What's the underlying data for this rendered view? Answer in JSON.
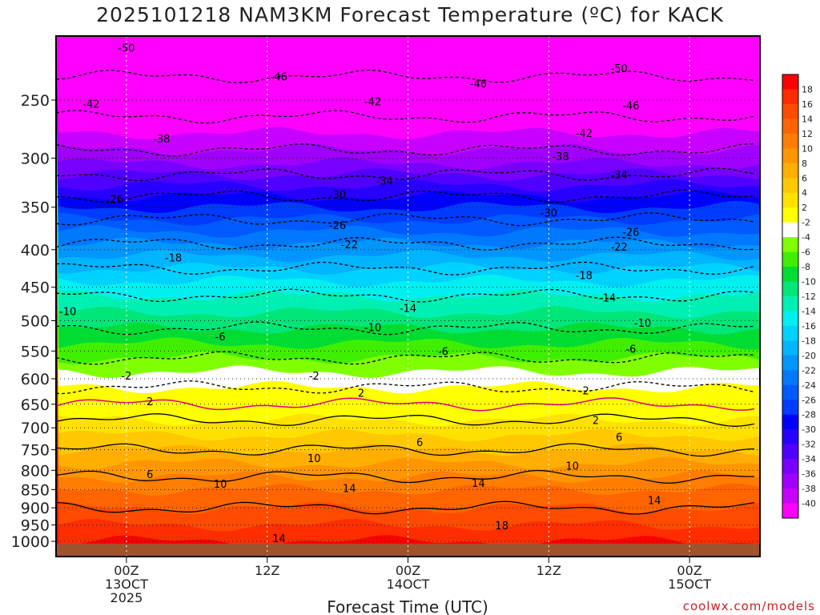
{
  "chart_data": {
    "type": "heatmap",
    "title": "2025101218 NAM3KM Forecast Temperature (ºC) for KACK",
    "xlabel": "Forecast Time (UTC)",
    "ylabel": "",
    "x_ticks": [
      {
        "hour": 6,
        "lines": [
          "00Z",
          "13OCT",
          "2025"
        ]
      },
      {
        "hour": 18,
        "lines": [
          "12Z"
        ]
      },
      {
        "hour": 30,
        "lines": [
          "00Z",
          "14OCT"
        ]
      },
      {
        "hour": 42,
        "lines": [
          "12Z"
        ]
      },
      {
        "hour": 54,
        "lines": [
          "00Z",
          "15OCT"
        ]
      }
    ],
    "xlim": [
      0,
      60
    ],
    "y_ticks": [
      250,
      300,
      350,
      400,
      450,
      500,
      550,
      600,
      650,
      700,
      750,
      800,
      850,
      900,
      950,
      1000
    ],
    "ylim_hpa": [
      1000,
      200
    ],
    "temperature_profile": [
      {
        "p": 1000,
        "t": 15
      },
      {
        "p": 950,
        "t": 16
      },
      {
        "p": 900,
        "t": 14
      },
      {
        "p": 850,
        "t": 12
      },
      {
        "p": 800,
        "t": 9
      },
      {
        "p": 750,
        "t": 6
      },
      {
        "p": 700,
        "t": 3
      },
      {
        "p": 650,
        "t": 0
      },
      {
        "p": 600,
        "t": -3
      },
      {
        "p": 550,
        "t": -7
      },
      {
        "p": 500,
        "t": -11
      },
      {
        "p": 450,
        "t": -15
      },
      {
        "p": 400,
        "t": -21
      },
      {
        "p": 350,
        "t": -28
      },
      {
        "p": 300,
        "t": -37
      },
      {
        "p": 250,
        "t": -44
      },
      {
        "p": 200,
        "t": -50
      }
    ],
    "contour_levels": [
      -50,
      -46,
      -42,
      -38,
      -34,
      -30,
      -26,
      -22,
      -18,
      -14,
      -10,
      -6,
      -2,
      2,
      6,
      10,
      14,
      18
    ],
    "contour_labels": [
      {
        "text": "-50",
        "hour": 6,
        "p": 212
      },
      {
        "text": "-46",
        "hour": 19,
        "p": 232
      },
      {
        "text": "-46",
        "hour": 36,
        "p": 237
      },
      {
        "text": "-50",
        "hour": 48,
        "p": 226
      },
      {
        "text": "-42",
        "hour": 3,
        "p": 253
      },
      {
        "text": "-42",
        "hour": 27,
        "p": 251
      },
      {
        "text": "-46",
        "hour": 49,
        "p": 254
      },
      {
        "text": "-38",
        "hour": 9,
        "p": 282
      },
      {
        "text": "-42",
        "hour": 45,
        "p": 277
      },
      {
        "text": "-38",
        "hour": 43,
        "p": 298
      },
      {
        "text": "-34",
        "hour": 28,
        "p": 322
      },
      {
        "text": "-34",
        "hour": 48,
        "p": 316
      },
      {
        "text": "-26",
        "hour": 5,
        "p": 341
      },
      {
        "text": "-30",
        "hour": 24,
        "p": 336
      },
      {
        "text": "-30",
        "hour": 42,
        "p": 356
      },
      {
        "text": "-26",
        "hour": 24,
        "p": 370
      },
      {
        "text": "-26",
        "hour": 49,
        "p": 378
      },
      {
        "text": "-22",
        "hour": 25,
        "p": 393
      },
      {
        "text": "-22",
        "hour": 48,
        "p": 396
      },
      {
        "text": "-18",
        "hour": 10,
        "p": 410
      },
      {
        "text": "-18",
        "hour": 45,
        "p": 433
      },
      {
        "text": "-14",
        "hour": 30,
        "p": 480
      },
      {
        "text": "-14",
        "hour": 47,
        "p": 465
      },
      {
        "text": "-10",
        "hour": 1,
        "p": 485
      },
      {
        "text": "-10",
        "hour": 27,
        "p": 510
      },
      {
        "text": "-10",
        "hour": 50,
        "p": 503
      },
      {
        "text": "-6",
        "hour": 14,
        "p": 525
      },
      {
        "text": "-6",
        "hour": 33,
        "p": 550
      },
      {
        "text": "-6",
        "hour": 49,
        "p": 546
      },
      {
        "text": "-2",
        "hour": 6,
        "p": 594
      },
      {
        "text": "-2",
        "hour": 22,
        "p": 594
      },
      {
        "text": "-2",
        "hour": 45,
        "p": 622
      },
      {
        "text": "2",
        "hour": 8,
        "p": 644
      },
      {
        "text": "2",
        "hour": 26,
        "p": 627
      },
      {
        "text": "2",
        "hour": 46,
        "p": 683
      },
      {
        "text": "6",
        "hour": 31,
        "p": 732
      },
      {
        "text": "6",
        "hour": 48,
        "p": 720
      },
      {
        "text": "10",
        "hour": 22,
        "p": 770
      },
      {
        "text": "10",
        "hour": 44,
        "p": 788
      },
      {
        "text": "6",
        "hour": 8,
        "p": 809
      },
      {
        "text": "10",
        "hour": 14,
        "p": 834
      },
      {
        "text": "14",
        "hour": 25,
        "p": 846
      },
      {
        "text": "14",
        "hour": 36,
        "p": 832
      },
      {
        "text": "14",
        "hour": 51,
        "p": 879
      },
      {
        "text": "18",
        "hour": 38,
        "p": 951
      },
      {
        "text": "14",
        "hour": 19,
        "p": 990
      }
    ],
    "colorbar": {
      "labels": [
        18,
        16,
        14,
        12,
        10,
        8,
        6,
        4,
        2,
        -2,
        -4,
        -6,
        -8,
        -10,
        -12,
        -14,
        -16,
        -18,
        -20,
        -22,
        -24,
        -26,
        -28,
        -30,
        -32,
        -34,
        -36,
        -38,
        -40
      ],
      "colors": [
        "#ff0000",
        "#ff2d00",
        "#ff4b00",
        "#ff6400",
        "#ff7d00",
        "#ff9600",
        "#ffaf00",
        "#ffc800",
        "#ffe100",
        "#ffff00",
        "#ffffff",
        "#80ff00",
        "#40ef00",
        "#00dc32",
        "#00e678",
        "#00f0b4",
        "#00f0f0",
        "#00d2ff",
        "#00b4ff",
        "#0096ff",
        "#0078ff",
        "#005aff",
        "#003cff",
        "#0000ff",
        "#2800ff",
        "#5000ff",
        "#7800ff",
        "#a000ff",
        "#c800ff",
        "#ff00ff"
      ]
    },
    "colors": {
      "ground": "#a0522d",
      "contour_zero": "#e0007a",
      "grid": "#333333",
      "credit": "#cc2222"
    }
  },
  "credit": "coolwx.com/models"
}
